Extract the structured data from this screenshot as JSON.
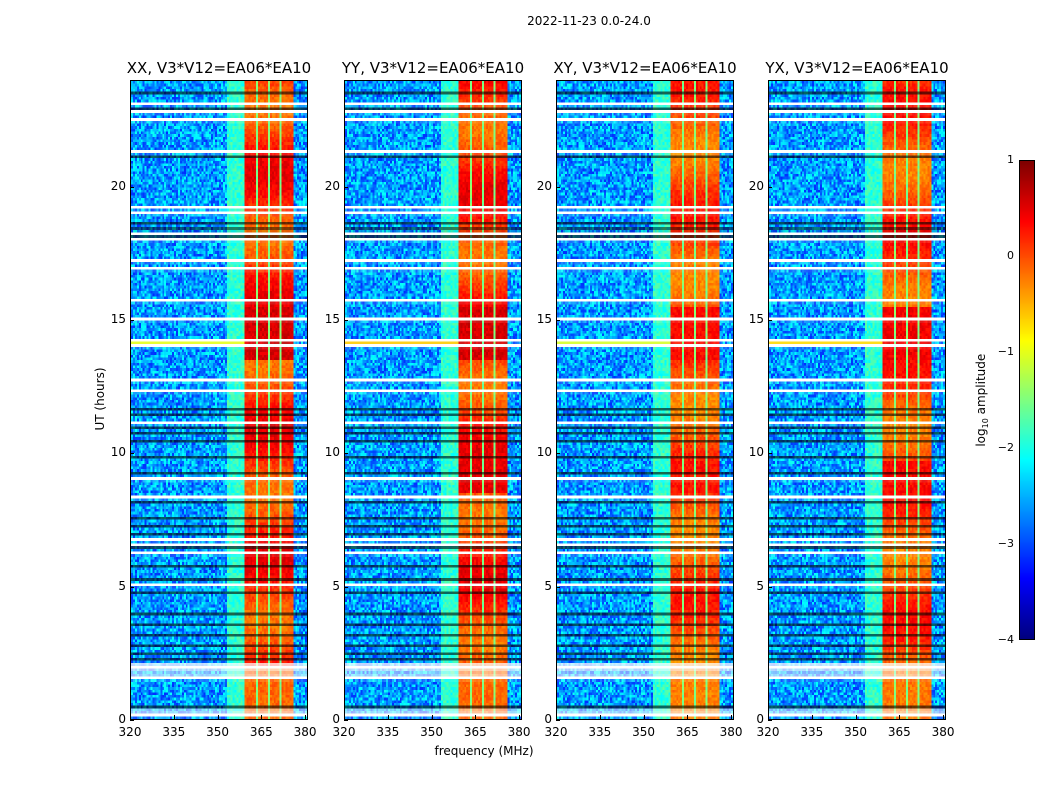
{
  "chart_data": {
    "type": "heatmap",
    "title": "2022-11-23 0.0-24.0",
    "xlabel": "frequency (MHz)",
    "ylabel": "UT (hours)",
    "xlim": [
      320,
      381
    ],
    "ylim": [
      0,
      24
    ],
    "xticks": [
      "320",
      "335",
      "350",
      "365",
      "380"
    ],
    "xtick_values": [
      320,
      335,
      350,
      365,
      380
    ],
    "yticks": [
      "0",
      "5",
      "10",
      "15",
      "20"
    ],
    "ytick_values": [
      0,
      5,
      10,
      15,
      20
    ],
    "panels": [
      {
        "title": "XX, V3*V12=EA06*EA10",
        "pol": "XX",
        "rfi_band_mhz": [
          359,
          376
        ],
        "strength": 1.0,
        "band14_mhz": [
          320,
          381
        ],
        "band14_strength": 0.5
      },
      {
        "title": "YY, V3*V12=EA06*EA10",
        "pol": "YY",
        "rfi_band_mhz": [
          359,
          376
        ],
        "strength": 1.0,
        "band14_mhz": [
          320,
          381
        ],
        "band14_strength": 0.75
      },
      {
        "title": "XY, V3*V12=EA06*EA10",
        "pol": "XY",
        "rfi_band_mhz": [
          359,
          376
        ],
        "strength": 0.85,
        "band14_mhz": [
          320,
          361
        ],
        "band14_strength": 0.45
      },
      {
        "title": "YX, V3*V12=EA06*EA10",
        "pol": "YX",
        "rfi_band_mhz": [
          359,
          376
        ],
        "strength": 0.9,
        "band14_mhz": [
          320,
          361
        ],
        "band14_strength": 0.7
      }
    ],
    "colorbar": {
      "label": "log10 amplitude",
      "label_main": "log",
      "label_sub": "10",
      "label_rest": " amplitude",
      "range": [
        -4,
        1
      ],
      "ticks": [
        "1",
        "0",
        "−1",
        "−2",
        "−3",
        "−4"
      ],
      "tick_values": [
        1,
        0,
        -1,
        -2,
        -3,
        -4
      ],
      "colormap": "jet"
    },
    "flagged_hours_white": [
      0.2,
      0.35,
      1.6,
      1.75,
      2.05,
      5.1,
      6.3,
      6.6,
      6.8,
      8.4,
      9.1,
      11.2,
      12.4,
      12.8,
      14.1,
      14.3,
      15.1,
      15.8,
      17.0,
      17.3,
      18.1,
      18.3,
      19.1,
      19.3,
      21.4,
      22.6,
      22.9,
      23.2
    ],
    "flagged_hours_black": [
      0.5,
      2.3,
      2.5,
      2.8,
      3.2,
      3.6,
      4.0,
      4.8,
      5.3,
      5.8,
      6.5,
      7.0,
      7.3,
      7.6,
      8.2,
      9.3,
      9.9,
      10.5,
      10.8,
      11.0,
      11.5,
      11.7,
      18.2,
      18.45,
      18.7,
      21.2,
      23.0,
      23.6
    ]
  }
}
